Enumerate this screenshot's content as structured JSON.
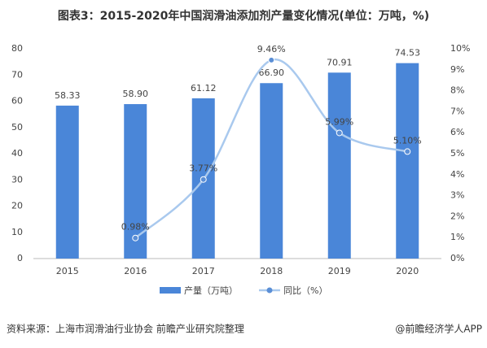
{
  "chart_data": {
    "type": "bar-line",
    "title": "图表3：2015-2020年中国润滑油添加剂产量变化情况(单位：万吨，%)",
    "categories": [
      "2015",
      "2016",
      "2017",
      "2018",
      "2019",
      "2020"
    ],
    "series": [
      {
        "name": "产量（万吨）",
        "type": "bar",
        "color": "#4a86d8",
        "values": [
          58.33,
          58.9,
          61.12,
          66.9,
          70.91,
          74.53
        ],
        "value_labels": [
          "58.33",
          "58.90",
          "61.12",
          "66.90",
          "70.91",
          "74.53"
        ]
      },
      {
        "name": "同比（%）",
        "type": "line",
        "axis": "y2",
        "color": "#a9c9ee",
        "values": [
          null,
          0.98,
          3.77,
          9.46,
          5.99,
          5.1
        ],
        "value_labels": [
          null,
          "0.98%",
          "3.77%",
          "9.46%",
          "5.99%",
          "5.10%"
        ]
      }
    ],
    "ylim": [
      0,
      80
    ],
    "yticks": [
      0,
      10,
      20,
      30,
      40,
      50,
      60,
      70,
      80
    ],
    "y2lim": [
      0,
      10
    ],
    "y2ticks": [
      {
        "value": 0,
        "label": "0%"
      },
      {
        "value": 1,
        "label": "1%"
      },
      {
        "value": 2,
        "label": "2%"
      },
      {
        "value": 3,
        "label": "3%"
      },
      {
        "value": 4,
        "label": "4%"
      },
      {
        "value": 5,
        "label": "5%"
      },
      {
        "value": 6,
        "label": "6%"
      },
      {
        "value": 7,
        "label": "7%"
      },
      {
        "value": 8,
        "label": "8%"
      },
      {
        "value": 9,
        "label": "9%"
      },
      {
        "value": 10,
        "label": "10%"
      }
    ],
    "source": "资料来源：上海市润滑油行业协会 前瞻产业研究院整理",
    "credit": "@前瞻经济学人APP"
  }
}
